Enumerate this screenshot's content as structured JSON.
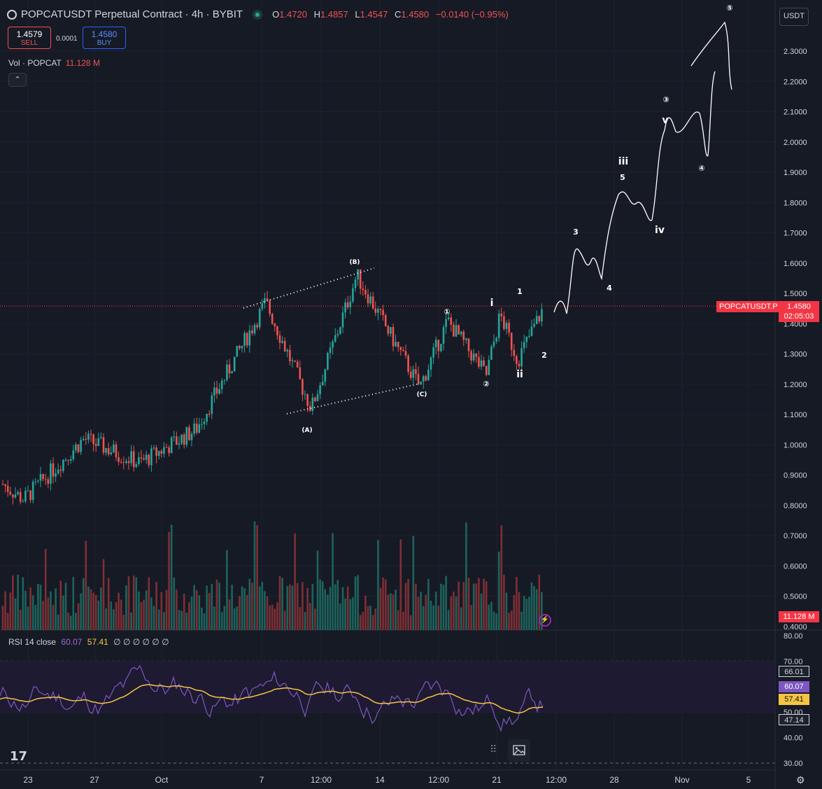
{
  "header": {
    "title": "POPCATUSDT Perpetual Contract · 4h · BYBIT",
    "ohlc": [
      {
        "k": "O",
        "v": "1.4720"
      },
      {
        "k": "H",
        "v": "1.4857"
      },
      {
        "k": "L",
        "v": "1.4547"
      },
      {
        "k": "C",
        "v": "1.4580"
      }
    ],
    "change": "−0.0140 (−0.95%)"
  },
  "trade": {
    "sell_price": "1.4579",
    "sell_label": "SELL",
    "spread": "0.0001",
    "buy_price": "1.4580",
    "buy_label": "BUY"
  },
  "volume": {
    "label": "Vol · POPCAT",
    "value": "11.128 M",
    "badge": "11.128 M"
  },
  "rsi": {
    "label": "RSI",
    "params": "14 close",
    "value": "60.07",
    "ma": "57.41",
    "zeros": "∅ ∅ ∅ ∅ ∅ ∅"
  },
  "currency": "USDT",
  "symbol_tag": "POPCATUSDT.P",
  "last_price": "1.4580",
  "countdown": "02:05:03",
  "rsi_badges": {
    "upper": "66.01",
    "current": "60.07",
    "ma": "57.41",
    "lower": "47.14"
  },
  "colors": {
    "up": "#26a69a",
    "down": "#ef5350",
    "rsi": "#7e57c2",
    "rsi_ma": "#f5c542",
    "bg": "#161a25",
    "price_line": "#f23645"
  },
  "icons": [
    "chevron-up-icon",
    "lightning-icon",
    "image-icon",
    "drag-grip-icon",
    "settings-gear-icon",
    "tradingview-logo-icon"
  ],
  "chart_data": {
    "type": "candlestick",
    "price_axis": {
      "ticks": [
        "2.3000",
        "2.2000",
        "2.1000",
        "2.0000",
        "1.9000",
        "1.8000",
        "1.7000",
        "1.6000",
        "1.5000",
        "1.4000",
        "1.3000",
        "1.2000",
        "1.1000",
        "1.0000",
        "0.9000",
        "0.8000",
        "0.7000",
        "0.6000",
        "0.5000",
        "0.4000"
      ]
    },
    "rsi_axis": {
      "ticks": [
        "80.00",
        "70.00",
        "60.00",
        "50.00",
        "40.00",
        "30.00"
      ]
    },
    "x_ticks": [
      "23",
      "27",
      "Oct",
      "7",
      "12:00",
      "14",
      "12:00",
      "21",
      "12:00",
      "28",
      "Nov",
      "5"
    ],
    "approx_price_path": [
      {
        "label": "Sep 23 start",
        "close": 0.87
      },
      {
        "label": "Sep 24 low",
        "close": 0.82
      },
      {
        "label": "Sep 27",
        "close": 1.02
      },
      {
        "label": "Oct 1",
        "close": 0.94
      },
      {
        "label": "Oct 5",
        "close": 1.05
      },
      {
        "label": "Oct 7 high",
        "close": 1.47
      },
      {
        "label": "(A) low",
        "close": 1.12
      },
      {
        "label": "(B) high",
        "close": 1.56
      },
      {
        "label": "(C) low",
        "close": 1.19
      },
      {
        "label": "wave 1",
        "close": 1.41
      },
      {
        "label": "wave 2",
        "close": 1.23
      },
      {
        "label": "wave i",
        "close": 1.43
      },
      {
        "label": "wave ii",
        "close": 1.28
      },
      {
        "label": "current",
        "close": 1.458
      }
    ],
    "wave_labels": [
      "(A)",
      "(B)",
      "(C)",
      "①",
      "②",
      "i",
      "ii",
      "1",
      "2",
      "3",
      "4",
      "5",
      "iii",
      "iv",
      "v",
      "③",
      "④",
      "⑤"
    ]
  }
}
